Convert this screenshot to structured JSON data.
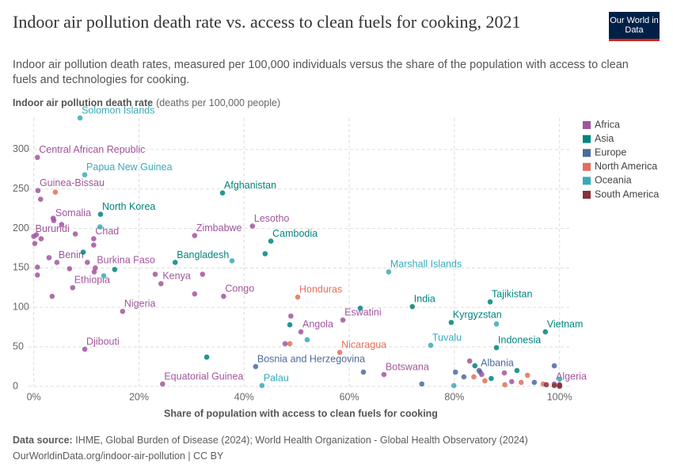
{
  "chart_data": {
    "type": "scatter",
    "title": "Indoor air pollution death rate vs. access to clean fuels for cooking, 2021",
    "subtitle": "Indoor air pollution death rates, measured per 100,000 individuals versus the share of the population with access to clean fuels and technologies for cooking.",
    "y_label": "Indoor air pollution death rate",
    "y_unit": "(deaths per 100,000 people)",
    "x_label": "Share of population with access to clean fuels for cooking",
    "xlim": [
      -1,
      102
    ],
    "ylim": [
      0,
      340
    ],
    "xticks": [
      {
        "value": 0,
        "label": "0%"
      },
      {
        "value": 20,
        "label": "20%"
      },
      {
        "value": 40,
        "label": "40%"
      },
      {
        "value": 60,
        "label": "60%"
      },
      {
        "value": 80,
        "label": "80%"
      },
      {
        "value": 100,
        "label": "100%"
      }
    ],
    "yticks": [
      0,
      50,
      100,
      150,
      200,
      250,
      300
    ],
    "grid": true,
    "legend": "right",
    "series": [
      {
        "name": "Africa",
        "color": "#a2559c",
        "x": [
          0.7,
          0.8,
          3.8,
          0,
          11.4,
          4.4,
          11.7,
          7.4,
          24.2,
          30.6,
          41.6,
          36.1,
          16.9,
          9.7,
          24.5,
          50.8,
          58.8,
          66.6,
          99,
          0.5,
          0.2,
          1.4,
          1.3,
          3.7,
          5.3,
          7.9,
          11.4,
          0.7,
          0.7,
          2.9,
          6.8,
          10.2,
          11.5,
          3.5,
          23.1,
          32.1,
          30.6,
          48.9,
          47.8,
          82.9,
          84.9,
          85.2,
          89.5,
          90.9
        ],
        "y": [
          290,
          248,
          210,
          190,
          187,
          157,
          150,
          125,
          130,
          191,
          203,
          114,
          95,
          47,
          3,
          69,
          84,
          15,
          3,
          192,
          181,
          187,
          237,
          213,
          205,
          193,
          179,
          151,
          141,
          163,
          149,
          157,
          145,
          114,
          142,
          142,
          117,
          89,
          54,
          32,
          18,
          15,
          17,
          6
        ],
        "labels": [
          "Central African Republic",
          "Guinea-Bissau",
          "Somalia",
          "Burundi",
          "Chad",
          "Benin",
          "Burkina Faso",
          "Ethiopia",
          "Kenya",
          "Zimbabwe",
          "Lesotho",
          "Congo",
          "Nigeria",
          "Djibouti",
          "Equatorial Guinea",
          "Angola",
          "Eswatini",
          "Botswana",
          "Algeria",
          null,
          null,
          null,
          null,
          null,
          null,
          null,
          null,
          null,
          null,
          null,
          null,
          null,
          null,
          null,
          null,
          null,
          null,
          null,
          null,
          null,
          null,
          null,
          null,
          null
        ]
      },
      {
        "name": "Asia",
        "color": "#00847e",
        "x": [
          35.9,
          12.7,
          26.9,
          45.1,
          72.0,
          86.8,
          79.4,
          97.3,
          88.0,
          9.4,
          15.4,
          44.0,
          48.7,
          32.9,
          62.1,
          83.9,
          91.9,
          87.0
        ],
        "y": [
          245,
          218,
          157,
          184,
          101,
          107,
          81,
          69,
          49,
          170,
          148,
          168,
          78,
          37,
          99,
          26,
          20,
          10
        ],
        "labels": [
          "Afghanistan",
          "North Korea",
          "Bangladesh",
          "Cambodia",
          "India",
          "Tajikistan",
          "Kyrgyzstan",
          "Vietnam",
          "Indonesia",
          null,
          null,
          null,
          null,
          null,
          null,
          null,
          null,
          null
        ]
      },
      {
        "name": "Europe",
        "color": "#4c6a9c",
        "x": [
          42.2,
          84.7,
          62.7,
          73.8,
          80.2,
          81.8,
          99.0,
          95.2,
          100
        ],
        "y": [
          25,
          20,
          18,
          3,
          18,
          12,
          26,
          5,
          1
        ],
        "labels": [
          "Bosnia and Herzegovina",
          "Albania",
          null,
          null,
          null,
          null,
          null,
          null,
          null
        ]
      },
      {
        "name": "North America",
        "color": "#e56e5a",
        "x": [
          50.2,
          58.2,
          4.1,
          48.7,
          83.7,
          85.8,
          89.6,
          93.9,
          92.7,
          96.9
        ],
        "y": [
          113,
          43,
          246,
          54,
          12,
          7,
          2,
          14,
          5,
          3
        ],
        "labels": [
          "Honduras",
          "Nicaragua",
          null,
          null,
          null,
          null,
          null,
          null,
          null,
          null
        ]
      },
      {
        "name": "Oceania",
        "color": "#38aaba",
        "x": [
          8.8,
          9.7,
          67.5,
          75.5,
          43.4,
          12.6,
          13.3,
          37.7,
          52.0,
          88.0,
          79.9,
          100
        ],
        "y": [
          340,
          268,
          145,
          52,
          1,
          202,
          140,
          159,
          59,
          79,
          1,
          9
        ],
        "labels": [
          "Solomon Islands",
          "Papua New Guinea",
          "Marshall Islands",
          "Tuvalu",
          "Palau",
          null,
          null,
          null,
          null,
          null,
          null,
          null
        ]
      },
      {
        "name": "South America",
        "color": "#883039",
        "x": [
          100,
          97.5,
          99,
          100
        ],
        "y": [
          2,
          2,
          1,
          0
        ],
        "labels": [
          null,
          null,
          null,
          null
        ]
      }
    ]
  },
  "logo": "Our World in Data",
  "source_label": "Data source:",
  "source": "IHME, Global Burden of Disease (2024); World Health Organization - Global Health Observatory (2024)",
  "url": "OurWorldinData.org/indoor-air-pollution | CC BY"
}
